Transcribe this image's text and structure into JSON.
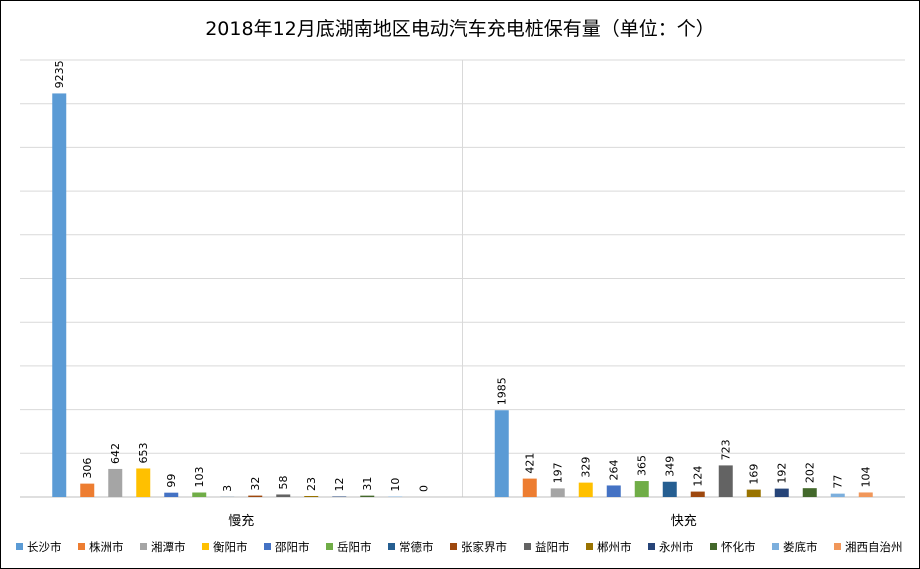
{
  "chart_data": {
    "type": "bar",
    "title": "2018年12月底湖南地区电动汽车充电桩保有量（单位：个）",
    "categories": [
      "慢充",
      "快充"
    ],
    "ylim": [
      0,
      10000
    ],
    "grid": true,
    "legend_position": "bottom",
    "series": [
      {
        "name": "长沙市",
        "color": "#5B9BD5",
        "values": [
          9235,
          1985
        ]
      },
      {
        "name": "株洲市",
        "color": "#ED7D31",
        "values": [
          306,
          421
        ]
      },
      {
        "name": "湘潭市",
        "color": "#A5A5A5",
        "values": [
          642,
          197
        ]
      },
      {
        "name": "衡阳市",
        "color": "#FFC000",
        "values": [
          653,
          329
        ]
      },
      {
        "name": "邵阳市",
        "color": "#4472C4",
        "values": [
          99,
          264
        ]
      },
      {
        "name": "岳阳市",
        "color": "#70AD47",
        "values": [
          103,
          365
        ]
      },
      {
        "name": "常德市",
        "color": "#255E91",
        "values": [
          3,
          349
        ]
      },
      {
        "name": "张家界市",
        "color": "#9E480E",
        "values": [
          32,
          124
        ]
      },
      {
        "name": "益阳市",
        "color": "#636363",
        "values": [
          58,
          723
        ]
      },
      {
        "name": "郴州市",
        "color": "#997300",
        "values": [
          23,
          169
        ]
      },
      {
        "name": "永州市",
        "color": "#264478",
        "values": [
          12,
          192
        ]
      },
      {
        "name": "怀化市",
        "color": "#43682B",
        "values": [
          31,
          202
        ]
      },
      {
        "name": "娄底市",
        "color": "#7CAFDD",
        "values": [
          10,
          77
        ]
      },
      {
        "name": "湘西自治州",
        "color": "#F1975A",
        "values": [
          0,
          104
        ]
      }
    ]
  }
}
